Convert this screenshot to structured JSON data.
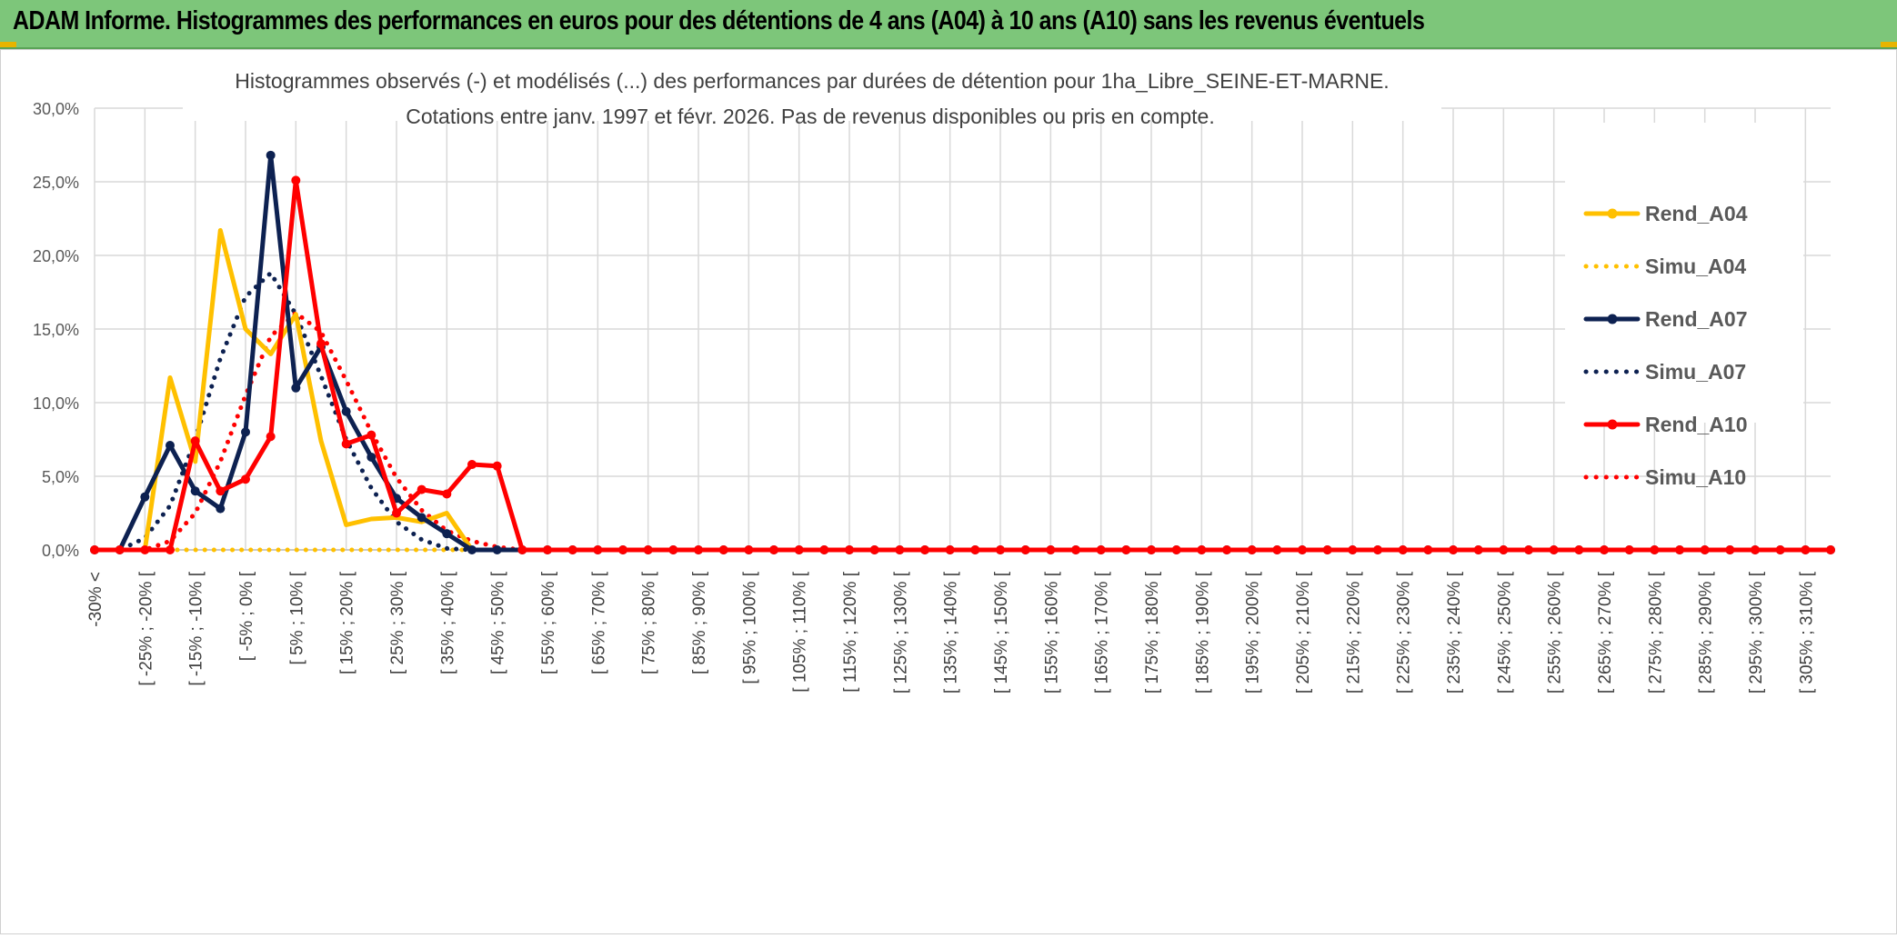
{
  "header": {
    "title": "ADAM Informe. Histogrammes des performances en euros pour des détentions de 4 ans (A04) à 10 ans (A10) sans les revenus éventuels"
  },
  "chart_data": {
    "type": "line",
    "title_line1": "Histogrammes observés (-) et modélisés (...) des performances par durées de détention pour 1ha_Libre_SEINE-ET-MARNE.",
    "title_line2": "Cotations entre janv. 1997 et févr. 2026. Pas de revenus disponibles ou pris en compte.",
    "ylim": [
      0,
      30
    ],
    "yticks": [
      "0,0%",
      "5,0%",
      "10,0%",
      "15,0%",
      "20,0%",
      "25,0%",
      "30,0%"
    ],
    "grid": true,
    "legend_position": "right",
    "x_count": 70,
    "x_tick_labels": [
      "-30% <",
      "[ -25% ; -20% [",
      "[ -15% ; -10% [",
      "[ -5% ; 0% [",
      "[ 5% ; 10% [",
      "[ 15% ; 20% [",
      "[ 25% ; 30% [",
      "[ 35% ; 40% [",
      "[ 45% ; 50% [",
      "[ 55% ; 60% [",
      "[ 65% ; 70% [",
      "[ 75% ; 80% [",
      "[ 85% ; 90% [",
      "[ 95% ; 100% [",
      "[ 105% ; 110% [",
      "[ 115% ; 120% [",
      "[ 125% ; 130% [",
      "[ 135% ; 140% [",
      "[ 145% ; 150% [",
      "[ 155% ; 160% [",
      "[ 165% ; 170% [",
      "[ 175% ; 180% [",
      "[ 185% ; 190% [",
      "[ 195% ; 200% [",
      "[ 205% ; 210% [",
      "[ 215% ; 220% [",
      "[ 225% ; 230% [",
      "[ 235% ; 240% [",
      "[ 245% ; 250% [",
      "[ 255% ; 260% [",
      "[ 265% ; 270% [",
      "[ 275% ; 280% [",
      "[ 285% ; 290% [",
      "[ 295% ; 300% [",
      "[ 305% ; 310% ["
    ],
    "series": [
      {
        "name": "Rend_A04",
        "color": "#FFC000",
        "style": "solid",
        "markers": false,
        "values": [
          0,
          0,
          0,
          11.7,
          6.0,
          21.7,
          15.0,
          13.3,
          16.0,
          7.4,
          1.7,
          2.1,
          2.2,
          1.9,
          2.5,
          0,
          0,
          0
        ]
      },
      {
        "name": "Simu_A04",
        "color": "#FFC000",
        "style": "dotted",
        "markers": false,
        "values": [
          0,
          0,
          0,
          0,
          0,
          0,
          0,
          0,
          0,
          0,
          0,
          0,
          0,
          0,
          0,
          0,
          0,
          0
        ]
      },
      {
        "name": "Rend_A07",
        "color": "#0D2151",
        "style": "solid",
        "markers": true,
        "values": [
          0,
          0,
          3.6,
          7.1,
          4.0,
          2.8,
          8.0,
          26.8,
          11.0,
          13.8,
          9.4,
          6.3,
          3.5,
          2.2,
          1.1,
          0,
          0,
          0
        ]
      },
      {
        "name": "Simu_A07",
        "color": "#0D2151",
        "style": "dotted",
        "markers": false,
        "values": [
          0,
          0,
          0.8,
          3.0,
          7.5,
          13.0,
          17.2,
          18.8,
          16.0,
          11.8,
          7.5,
          4.2,
          1.9,
          0.7,
          0.1,
          0,
          0,
          0
        ]
      },
      {
        "name": "Rend_A10",
        "color": "#FF0000",
        "style": "solid",
        "markers": true,
        "values": [
          0,
          0,
          0,
          0,
          7.4,
          4.0,
          4.8,
          7.7,
          25.1,
          14.0,
          7.2,
          7.8,
          2.5,
          4.1,
          3.8,
          5.8,
          5.7,
          0,
          0,
          0,
          0,
          0,
          0,
          0,
          0,
          0,
          0,
          0,
          0,
          0,
          0,
          0,
          0,
          0,
          0,
          0,
          0,
          0,
          0,
          0,
          0,
          0,
          0,
          0,
          0,
          0,
          0,
          0,
          0,
          0,
          0,
          0,
          0,
          0,
          0,
          0,
          0,
          0,
          0,
          0,
          0,
          0,
          0,
          0,
          0,
          0,
          0,
          0,
          0,
          0
        ]
      },
      {
        "name": "Simu_A10",
        "color": "#FF0000",
        "style": "dotted",
        "markers": false,
        "values": [
          0,
          0,
          0,
          0.6,
          2.5,
          6.0,
          10.5,
          14.5,
          16.1,
          14.8,
          11.5,
          8.0,
          4.9,
          2.7,
          1.3,
          0.6,
          0.2,
          0,
          0,
          0
        ]
      }
    ]
  }
}
